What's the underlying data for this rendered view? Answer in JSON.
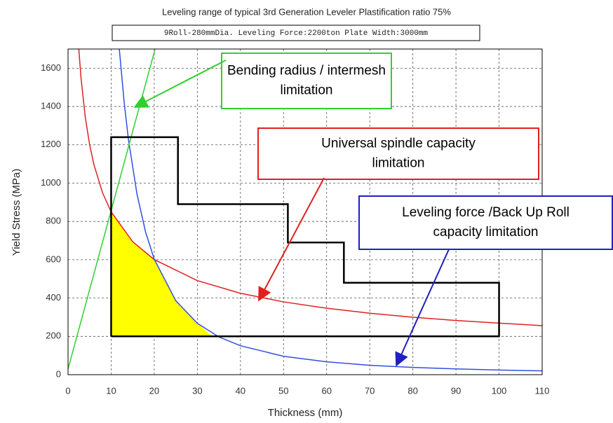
{
  "chart_data": {
    "type": "line",
    "title": "Leveling range of typical 3rd Generation Leveler Plastification ratio 75%",
    "subtitle": "9Roll-280mmDia.  Leveling Force:2200ton  Plate Width:3000mm",
    "x_label": "Thickness (mm)",
    "y_label": "Yield Stress (MPa)",
    "xlim": [
      0,
      110
    ],
    "ylim": [
      0,
      1700
    ],
    "xticks": [
      0,
      10,
      20,
      30,
      40,
      50,
      60,
      70,
      80,
      90,
      100,
      110
    ],
    "yticks": [
      0,
      200,
      400,
      600,
      800,
      1000,
      1200,
      1400,
      1600
    ],
    "grid": true,
    "region": {
      "color": "#ffff00",
      "x": [
        10,
        10,
        15,
        20,
        25,
        30,
        33.5
      ],
      "values": [
        200,
        850,
        695,
        600,
        386,
        268,
        200
      ]
    },
    "series": [
      {
        "color": "#e02020",
        "x": [
          2.5,
          3,
          4,
          5,
          6,
          8,
          10,
          15,
          20,
          30,
          40,
          50,
          60,
          70,
          80,
          90,
          100,
          110
        ],
        "values": [
          1700,
          1552,
          1344,
          1202,
          1097,
          950,
          850,
          694,
          601,
          491,
          425,
          380,
          347,
          321,
          300,
          283,
          269,
          256
        ]
      },
      {
        "color": "#3050e0",
        "x": [
          11.9,
          13,
          14,
          16,
          18,
          20,
          25,
          30,
          35,
          40,
          50,
          60,
          70,
          80,
          90,
          100,
          110
        ],
        "values": [
          1700,
          1427,
          1230,
          942,
          744,
          603,
          386,
          268,
          197,
          151,
          96,
          67,
          49,
          38,
          30,
          24,
          20
        ]
      },
      {
        "color": "#30d030",
        "x": [
          0,
          20.2
        ],
        "values": [
          30,
          1700
        ]
      },
      {
        "color": "#000000",
        "x": [
          10,
          10,
          25.5,
          25.5,
          51,
          51,
          64,
          64,
          100,
          100,
          10
        ],
        "values": [
          200,
          1240,
          1240,
          890,
          890,
          690,
          690,
          480,
          480,
          200,
          200
        ]
      }
    ],
    "annotations": [
      {
        "lines": [
          "Bending radius / intermesh",
          "limitation"
        ],
        "color": "#30d030"
      },
      {
        "lines": [
          "Universal spindle capacity",
          "limitation"
        ],
        "color": "#e02020"
      },
      {
        "lines": [
          "Leveling force /Back Up Roll",
          "capacity limitation"
        ],
        "color": "#2020c0"
      }
    ]
  }
}
